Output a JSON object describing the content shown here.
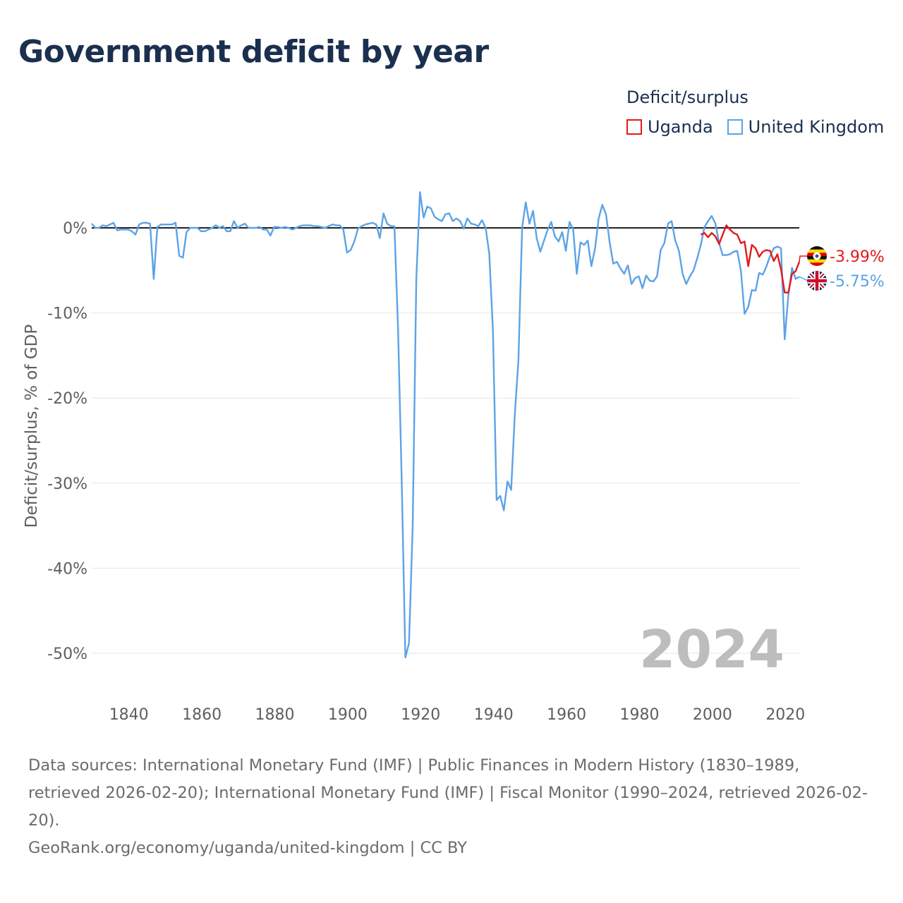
{
  "title": "Government deficit by year",
  "legend": {
    "title": "Deficit/surplus",
    "items": [
      {
        "label": "Uganda",
        "color": "#e31a1c"
      },
      {
        "label": "United Kingdom",
        "color": "#5ba3e6"
      }
    ]
  },
  "year_overlay": "2024",
  "end_labels": {
    "uganda": "-3.99%",
    "uk": "-5.75%"
  },
  "footer": {
    "sources": "Data sources: International Monetary Fund (IMF) | Public Finances in Modern History (1830–1989, retrieved 2026-02-20); International Monetary Fund (IMF) | Fiscal Monitor (1990–2024, retrieved 2026-02-20).",
    "credit": "GeoRank.org/economy/uganda/united-kingdom | CC BY"
  },
  "chart_data": {
    "type": "line",
    "title": "Government deficit by year",
    "xlabel": "",
    "ylabel": "Deficit/surplus, % of GDP",
    "xlim": [
      1830,
      2024
    ],
    "ylim": [
      -55,
      5
    ],
    "x_ticks": [
      1840,
      1860,
      1880,
      1900,
      1920,
      1940,
      1960,
      1980,
      2000,
      2020
    ],
    "x_tick_labels": [
      "1840",
      "1860",
      "1880",
      "1900",
      "1920",
      "1940",
      "1960",
      "1980",
      "2000",
      "2020"
    ],
    "y_ticks": [
      0,
      -10,
      -20,
      -30,
      -40,
      -50
    ],
    "y_tick_labels": [
      "0%",
      "-10%",
      "-20%",
      "-30%",
      "-40%",
      "-50%"
    ],
    "zero_line": true,
    "grid": "horizontal",
    "series": [
      {
        "name": "United Kingdom",
        "color": "#5ba3e6",
        "points": [
          [
            1830,
            0.5
          ],
          [
            1831,
            0
          ],
          [
            1832,
            0
          ],
          [
            1833,
            0.3
          ],
          [
            1834,
            0.2
          ],
          [
            1835,
            0.4
          ],
          [
            1836,
            0.6
          ],
          [
            1837,
            -0.3
          ],
          [
            1838,
            -0.2
          ],
          [
            1839,
            -0.2
          ],
          [
            1840,
            -0.2
          ],
          [
            1841,
            -0.4
          ],
          [
            1842,
            -0.8
          ],
          [
            1843,
            0.4
          ],
          [
            1844,
            0.6
          ],
          [
            1845,
            0.6
          ],
          [
            1846,
            0.5
          ],
          [
            1847,
            -6
          ],
          [
            1848,
            0.1
          ],
          [
            1849,
            0.4
          ],
          [
            1850,
            0.4
          ],
          [
            1851,
            0.4
          ],
          [
            1852,
            0.4
          ],
          [
            1853,
            0.6
          ],
          [
            1854,
            -3.3
          ],
          [
            1855,
            -3.5
          ],
          [
            1856,
            -0.5
          ],
          [
            1857,
            0
          ],
          [
            1858,
            0
          ],
          [
            1859,
            0
          ],
          [
            1860,
            -0.4
          ],
          [
            1861,
            -0.4
          ],
          [
            1862,
            -0.2
          ],
          [
            1863,
            0
          ],
          [
            1864,
            0.3
          ],
          [
            1865,
            0
          ],
          [
            1866,
            0.2
          ],
          [
            1867,
            -0.4
          ],
          [
            1868,
            -0.4
          ],
          [
            1869,
            0.8
          ],
          [
            1870,
            0
          ],
          [
            1871,
            0.3
          ],
          [
            1872,
            0.5
          ],
          [
            1873,
            0
          ],
          [
            1874,
            0
          ],
          [
            1875,
            0
          ],
          [
            1876,
            0.1
          ],
          [
            1877,
            -0.2
          ],
          [
            1878,
            -0.2
          ],
          [
            1879,
            -0.9
          ],
          [
            1880,
            0.1
          ],
          [
            1881,
            0.1
          ],
          [
            1882,
            0
          ],
          [
            1883,
            0.1
          ],
          [
            1884,
            0
          ],
          [
            1885,
            -0.2
          ],
          [
            1886,
            0
          ],
          [
            1887,
            0.2
          ],
          [
            1888,
            0.3
          ],
          [
            1889,
            0.3
          ],
          [
            1890,
            0.3
          ],
          [
            1891,
            0.2
          ],
          [
            1892,
            0.2
          ],
          [
            1893,
            0.1
          ],
          [
            1894,
            0
          ],
          [
            1895,
            0.2
          ],
          [
            1896,
            0.4
          ],
          [
            1897,
            0.3
          ],
          [
            1898,
            0.3
          ],
          [
            1899,
            -0.2
          ],
          [
            1900,
            -2.9
          ],
          [
            1901,
            -2.6
          ],
          [
            1902,
            -1.6
          ],
          [
            1903,
            -0.1
          ],
          [
            1904,
            0.2
          ],
          [
            1905,
            0.4
          ],
          [
            1906,
            0.5
          ],
          [
            1907,
            0.6
          ],
          [
            1908,
            0.4
          ],
          [
            1909,
            -1.2
          ],
          [
            1910,
            1.7
          ],
          [
            1911,
            0.5
          ],
          [
            1912,
            0.2
          ],
          [
            1913,
            0.2
          ],
          [
            1914,
            -12
          ],
          [
            1915,
            -30
          ],
          [
            1916,
            -50.5
          ],
          [
            1917,
            -48.8
          ],
          [
            1918,
            -35
          ],
          [
            1919,
            -6
          ],
          [
            1920,
            4.2
          ],
          [
            1921,
            1.2
          ],
          [
            1922,
            2.5
          ],
          [
            1923,
            2.3
          ],
          [
            1924,
            1.3
          ],
          [
            1925,
            1
          ],
          [
            1926,
            0.8
          ],
          [
            1927,
            1.6
          ],
          [
            1928,
            1.7
          ],
          [
            1929,
            0.8
          ],
          [
            1930,
            1.1
          ],
          [
            1931,
            0.8
          ],
          [
            1932,
            -0.1
          ],
          [
            1933,
            1.1
          ],
          [
            1934,
            0.5
          ],
          [
            1935,
            0.4
          ],
          [
            1936,
            0.2
          ],
          [
            1937,
            0.9
          ],
          [
            1938,
            0
          ],
          [
            1939,
            -3
          ],
          [
            1940,
            -12
          ],
          [
            1941,
            -32
          ],
          [
            1942,
            -31.5
          ],
          [
            1943,
            -33.2
          ],
          [
            1944,
            -29.8
          ],
          [
            1945,
            -30.8
          ],
          [
            1946,
            -22
          ],
          [
            1947,
            -15.5
          ],
          [
            1948,
            0
          ],
          [
            1949,
            3
          ],
          [
            1950,
            0.5
          ],
          [
            1951,
            2
          ],
          [
            1952,
            -1.2
          ],
          [
            1953,
            -2.8
          ],
          [
            1954,
            -1.5
          ],
          [
            1955,
            -0.2
          ],
          [
            1956,
            0.7
          ],
          [
            1957,
            -1
          ],
          [
            1958,
            -1.6
          ],
          [
            1959,
            -0.5
          ],
          [
            1960,
            -2.7
          ],
          [
            1961,
            0.7
          ],
          [
            1962,
            -0.2
          ],
          [
            1963,
            -5.4
          ],
          [
            1964,
            -1.7
          ],
          [
            1965,
            -2
          ],
          [
            1966,
            -1.5
          ],
          [
            1967,
            -4.5
          ],
          [
            1968,
            -2.4
          ],
          [
            1969,
            1.1
          ],
          [
            1970,
            2.7
          ],
          [
            1971,
            1.6
          ],
          [
            1972,
            -1.7
          ],
          [
            1973,
            -4.2
          ],
          [
            1974,
            -4
          ],
          [
            1975,
            -4.8
          ],
          [
            1976,
            -5.4
          ],
          [
            1977,
            -4.4
          ],
          [
            1978,
            -6.6
          ],
          [
            1979,
            -5.9
          ],
          [
            1980,
            -5.7
          ],
          [
            1981,
            -7.1
          ],
          [
            1982,
            -5.6
          ],
          [
            1983,
            -6.2
          ],
          [
            1984,
            -6.3
          ],
          [
            1985,
            -5.7
          ],
          [
            1986,
            -2.6
          ],
          [
            1987,
            -1.8
          ],
          [
            1988,
            0.5
          ],
          [
            1989,
            0.8
          ],
          [
            1990,
            -1.5
          ],
          [
            1991,
            -2.7
          ],
          [
            1992,
            -5.4
          ],
          [
            1993,
            -6.6
          ],
          [
            1994,
            -5.7
          ],
          [
            1995,
            -5
          ],
          [
            1996,
            -3.6
          ],
          [
            1997,
            -2
          ],
          [
            1998,
            0.1
          ],
          [
            1999,
            0.8
          ],
          [
            2000,
            1.4
          ],
          [
            2001,
            0.5
          ],
          [
            2002,
            -1.8
          ],
          [
            2003,
            -3.2
          ],
          [
            2004,
            -3.2
          ],
          [
            2005,
            -3.1
          ],
          [
            2006,
            -2.8
          ],
          [
            2007,
            -2.7
          ],
          [
            2008,
            -5.1
          ],
          [
            2009,
            -10.1
          ],
          [
            2010,
            -9.3
          ],
          [
            2011,
            -7.3
          ],
          [
            2012,
            -7.4
          ],
          [
            2013,
            -5.3
          ],
          [
            2014,
            -5.5
          ],
          [
            2015,
            -4.5
          ],
          [
            2016,
            -3.3
          ],
          [
            2017,
            -2.4
          ],
          [
            2018,
            -2.2
          ],
          [
            2019,
            -2.4
          ],
          [
            2020,
            -13.1
          ],
          [
            2021,
            -7.9
          ],
          [
            2022,
            -4.7
          ],
          [
            2023,
            -6
          ],
          [
            2024,
            -5.75
          ]
        ]
      },
      {
        "name": "Uganda",
        "color": "#e31a1c",
        "points": [
          [
            1997,
            -0.8
          ],
          [
            1998,
            -0.6
          ],
          [
            1999,
            -1.1
          ],
          [
            2000,
            -0.6
          ],
          [
            2001,
            -1
          ],
          [
            2002,
            -1.9
          ],
          [
            2003,
            -0.8
          ],
          [
            2004,
            0.3
          ],
          [
            2005,
            -0.2
          ],
          [
            2006,
            -0.6
          ],
          [
            2007,
            -0.8
          ],
          [
            2008,
            -1.8
          ],
          [
            2009,
            -1.6
          ],
          [
            2010,
            -4.5
          ],
          [
            2011,
            -2
          ],
          [
            2012,
            -2.4
          ],
          [
            2013,
            -3.4
          ],
          [
            2014,
            -2.8
          ],
          [
            2015,
            -2.6
          ],
          [
            2016,
            -2.7
          ],
          [
            2017,
            -3.9
          ],
          [
            2018,
            -3.1
          ],
          [
            2019,
            -4.9
          ],
          [
            2020,
            -7.6
          ],
          [
            2021,
            -7.6
          ],
          [
            2022,
            -5.4
          ],
          [
            2023,
            -5.1
          ],
          [
            2024,
            -3.99
          ]
        ]
      }
    ]
  }
}
